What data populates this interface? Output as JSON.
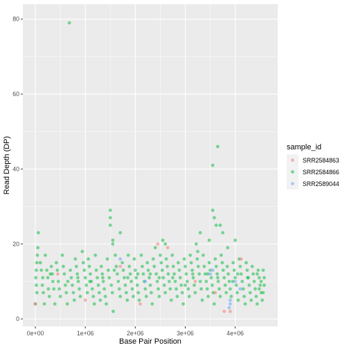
{
  "chart_data": {
    "type": "scatter",
    "xlabel": "Base Pair Position",
    "ylabel": "Read Depth (DP)",
    "xlim": [
      -250000,
      4850000
    ],
    "ylim": [
      -2,
      84
    ],
    "x_ticks": [
      0,
      1000000,
      2000000,
      3000000,
      4000000
    ],
    "x_tick_labels": [
      "0e+00",
      "1e+06",
      "2e+06",
      "3e+06",
      "4e+06"
    ],
    "y_ticks": [
      0,
      20,
      40,
      60,
      80
    ],
    "y_tick_labels": [
      "0",
      "20",
      "40",
      "60",
      "80"
    ],
    "legend": {
      "title": "sample_id",
      "position": "right",
      "entries": [
        "SRR2584863",
        "SRR2584866",
        "SRR2589044"
      ]
    },
    "colors": {
      "panel_bg": "#EBEBEB",
      "grid": "#ffffff",
      "text": "#4D4D4D",
      "title_text": "#000000",
      "SRR2584863": "#F8766D",
      "SRR2584866": "#00BA38",
      "SRR2589044": "#619CFF"
    },
    "point_alpha": 0.5,
    "series": [
      {
        "name": "SRR2584863",
        "points": [
          [
            0,
            4
          ],
          [
            450000,
            12
          ],
          [
            1700000,
            14
          ],
          [
            2650000,
            19
          ],
          [
            2100000,
            4
          ],
          [
            3600000,
            7
          ],
          [
            3780000,
            2
          ],
          [
            3900000,
            2
          ],
          [
            4120000,
            16
          ],
          [
            3200000,
            10
          ],
          [
            1000000,
            5
          ],
          [
            2450000,
            20
          ]
        ]
      },
      {
        "name": "SRR2589044",
        "points": [
          [
            1700000,
            16
          ],
          [
            2200000,
            10
          ],
          [
            3500000,
            12
          ],
          [
            3900000,
            4
          ],
          [
            3900000,
            5
          ],
          [
            3880000,
            3
          ],
          [
            4100000,
            8
          ],
          [
            4000000,
            10
          ],
          [
            3550000,
            13
          ]
        ]
      },
      {
        "name": "SRR2584866",
        "points": [
          [
            680000,
            79
          ],
          [
            3650000,
            46
          ],
          [
            3550000,
            41
          ],
          [
            1500000,
            29
          ],
          [
            1500000,
            27
          ],
          [
            3550000,
            29
          ],
          [
            3580000,
            27
          ],
          [
            3620000,
            25
          ],
          [
            1500000,
            25
          ],
          [
            1550000,
            21
          ],
          [
            1550000,
            20
          ],
          [
            1700000,
            23
          ],
          [
            3300000,
            23
          ],
          [
            3480000,
            21
          ],
          [
            3750000,
            23
          ],
          [
            3700000,
            25
          ],
          [
            3850000,
            19
          ],
          [
            2400000,
            19
          ],
          [
            2550000,
            21
          ],
          [
            2600000,
            20
          ],
          [
            3250000,
            18
          ],
          [
            3220000,
            20
          ],
          [
            4000000,
            21
          ],
          [
            60000,
            23
          ],
          [
            50000,
            19
          ],
          [
            40000,
            17
          ],
          [
            30000,
            15
          ],
          [
            20000,
            13
          ],
          [
            10000,
            11
          ],
          [
            20000,
            9
          ],
          [
            30000,
            7
          ],
          [
            0,
            4
          ],
          [
            100000,
            15
          ],
          [
            120000,
            13
          ],
          [
            150000,
            11
          ],
          [
            140000,
            9
          ],
          [
            160000,
            7
          ],
          [
            180000,
            4
          ],
          [
            200000,
            17
          ],
          [
            230000,
            13
          ],
          [
            250000,
            11
          ],
          [
            260000,
            8
          ],
          [
            280000,
            6
          ],
          [
            320000,
            14
          ],
          [
            340000,
            12
          ],
          [
            350000,
            10
          ],
          [
            370000,
            8
          ],
          [
            390000,
            4
          ],
          [
            420000,
            15
          ],
          [
            440000,
            13
          ],
          [
            460000,
            10
          ],
          [
            480000,
            8
          ],
          [
            500000,
            6
          ],
          [
            540000,
            17
          ],
          [
            560000,
            14
          ],
          [
            580000,
            12
          ],
          [
            600000,
            9
          ],
          [
            620000,
            7
          ],
          [
            640000,
            4
          ],
          [
            700000,
            13
          ],
          [
            720000,
            11
          ],
          [
            740000,
            9
          ],
          [
            760000,
            7
          ],
          [
            780000,
            5
          ],
          [
            800000,
            16
          ],
          [
            820000,
            14
          ],
          [
            840000,
            12
          ],
          [
            860000,
            10
          ],
          [
            880000,
            8
          ],
          [
            900000,
            6
          ],
          [
            940000,
            18
          ],
          [
            960000,
            15
          ],
          [
            980000,
            13
          ],
          [
            1000000,
            11
          ],
          [
            1020000,
            9
          ],
          [
            1040000,
            7
          ],
          [
            1060000,
            16
          ],
          [
            1080000,
            14
          ],
          [
            1100000,
            12
          ],
          [
            1120000,
            10
          ],
          [
            1140000,
            8
          ],
          [
            1160000,
            6
          ],
          [
            1180000,
            4
          ],
          [
            1200000,
            17
          ],
          [
            1220000,
            13
          ],
          [
            1240000,
            11
          ],
          [
            1260000,
            9
          ],
          [
            1280000,
            7
          ],
          [
            1300000,
            5
          ],
          [
            1320000,
            14
          ],
          [
            1340000,
            12
          ],
          [
            1360000,
            10
          ],
          [
            1380000,
            8
          ],
          [
            1400000,
            6
          ],
          [
            1420000,
            4
          ],
          [
            1440000,
            16
          ],
          [
            1460000,
            13
          ],
          [
            1480000,
            11
          ],
          [
            1520000,
            9
          ],
          [
            1540000,
            7
          ],
          [
            1560000,
            2
          ],
          [
            1600000,
            17
          ],
          [
            1620000,
            14
          ],
          [
            1640000,
            12
          ],
          [
            1660000,
            10
          ],
          [
            1680000,
            8
          ],
          [
            1700000,
            6
          ],
          [
            1740000,
            15
          ],
          [
            1760000,
            13
          ],
          [
            1780000,
            11
          ],
          [
            1800000,
            9
          ],
          [
            1820000,
            7
          ],
          [
            1840000,
            5
          ],
          [
            1860000,
            17
          ],
          [
            1880000,
            14
          ],
          [
            1900000,
            12
          ],
          [
            1920000,
            10
          ],
          [
            1940000,
            8
          ],
          [
            1960000,
            6
          ],
          [
            1980000,
            16
          ],
          [
            2000000,
            13
          ],
          [
            2020000,
            11
          ],
          [
            2040000,
            9
          ],
          [
            2060000,
            7
          ],
          [
            2080000,
            5
          ],
          [
            2120000,
            17
          ],
          [
            2140000,
            14
          ],
          [
            2160000,
            12
          ],
          [
            2180000,
            10
          ],
          [
            2200000,
            8
          ],
          [
            2220000,
            6
          ],
          [
            2240000,
            15
          ],
          [
            2260000,
            13
          ],
          [
            2280000,
            11
          ],
          [
            2300000,
            9
          ],
          [
            2320000,
            7
          ],
          [
            2340000,
            4
          ],
          [
            2360000,
            16
          ],
          [
            2380000,
            14
          ],
          [
            2420000,
            12
          ],
          [
            2440000,
            10
          ],
          [
            2460000,
            8
          ],
          [
            2480000,
            6
          ],
          [
            2500000,
            17
          ],
          [
            2520000,
            15
          ],
          [
            2540000,
            13
          ],
          [
            2560000,
            11
          ],
          [
            2580000,
            9
          ],
          [
            2600000,
            7
          ],
          [
            2620000,
            16
          ],
          [
            2640000,
            14
          ],
          [
            2660000,
            12
          ],
          [
            2680000,
            10
          ],
          [
            2700000,
            8
          ],
          [
            2720000,
            5
          ],
          [
            2740000,
            17
          ],
          [
            2760000,
            14
          ],
          [
            2780000,
            12
          ],
          [
            2800000,
            10
          ],
          [
            2820000,
            8
          ],
          [
            2840000,
            6
          ],
          [
            2860000,
            15
          ],
          [
            2880000,
            13
          ],
          [
            2900000,
            11
          ],
          [
            2920000,
            9
          ],
          [
            2940000,
            7
          ],
          [
            2960000,
            4
          ],
          [
            2980000,
            16
          ],
          [
            3000000,
            14
          ],
          [
            3020000,
            12
          ],
          [
            3040000,
            10
          ],
          [
            3060000,
            8
          ],
          [
            3080000,
            6
          ],
          [
            3100000,
            17
          ],
          [
            3120000,
            15
          ],
          [
            3140000,
            13
          ],
          [
            3160000,
            11
          ],
          [
            3180000,
            9
          ],
          [
            3200000,
            7
          ],
          [
            3240000,
            16
          ],
          [
            3260000,
            14
          ],
          [
            3280000,
            12
          ],
          [
            3300000,
            10
          ],
          [
            3320000,
            8
          ],
          [
            3340000,
            5
          ],
          [
            3360000,
            17
          ],
          [
            3380000,
            14
          ],
          [
            3400000,
            12
          ],
          [
            3420000,
            10
          ],
          [
            3440000,
            8
          ],
          [
            3460000,
            6
          ],
          [
            3480000,
            15
          ],
          [
            3500000,
            13
          ],
          [
            3520000,
            11
          ],
          [
            3540000,
            9
          ],
          [
            3560000,
            7
          ],
          [
            3580000,
            4
          ],
          [
            3600000,
            16
          ],
          [
            3620000,
            14
          ],
          [
            3640000,
            12
          ],
          [
            3660000,
            10
          ],
          [
            3680000,
            8
          ],
          [
            3700000,
            6
          ],
          [
            3720000,
            17
          ],
          [
            3740000,
            15
          ],
          [
            3760000,
            13
          ],
          [
            3780000,
            11
          ],
          [
            3800000,
            9
          ],
          [
            3820000,
            7
          ],
          [
            3840000,
            14
          ],
          [
            3860000,
            12
          ],
          [
            3880000,
            10
          ],
          [
            3900000,
            8
          ],
          [
            3920000,
            6
          ],
          [
            3960000,
            15
          ],
          [
            3980000,
            13
          ],
          [
            4000000,
            11
          ],
          [
            4020000,
            9
          ],
          [
            4040000,
            7
          ],
          [
            4060000,
            5
          ],
          [
            4080000,
            16
          ],
          [
            4100000,
            14
          ],
          [
            4120000,
            12
          ],
          [
            4140000,
            10
          ],
          [
            4160000,
            8
          ],
          [
            4180000,
            6
          ],
          [
            4200000,
            4
          ],
          [
            4220000,
            15
          ],
          [
            4240000,
            13
          ],
          [
            4260000,
            11
          ],
          [
            4280000,
            9
          ],
          [
            4300000,
            7
          ],
          [
            4320000,
            5
          ],
          [
            4340000,
            14
          ],
          [
            4360000,
            12
          ],
          [
            4380000,
            10
          ],
          [
            4400000,
            8
          ],
          [
            4420000,
            6
          ],
          [
            4440000,
            4
          ],
          [
            4460000,
            13
          ],
          [
            4480000,
            11
          ],
          [
            4500000,
            9
          ],
          [
            4520000,
            7
          ],
          [
            4540000,
            5
          ],
          [
            4560000,
            13
          ],
          [
            4580000,
            11
          ],
          [
            4580000,
            9
          ],
          [
            4560000,
            7
          ],
          [
            4520000,
            10
          ],
          [
            4480000,
            8
          ],
          [
            4440000,
            12
          ],
          [
            300000,
            12
          ],
          [
            650000,
            10
          ],
          [
            1090000,
            10
          ],
          [
            1580000,
            13
          ],
          [
            2050000,
            12
          ],
          [
            2480000,
            11
          ],
          [
            3000000,
            9
          ],
          [
            3450000,
            12
          ],
          [
            3950000,
            10
          ],
          [
            4250000,
            11
          ],
          [
            850000,
            11
          ],
          [
            1350000,
            11
          ],
          [
            1850000,
            11
          ],
          [
            2300000,
            12
          ],
          [
            2750000,
            11
          ],
          [
            3150000,
            12
          ],
          [
            3650000,
            11
          ],
          [
            4050000,
            12
          ]
        ]
      }
    ]
  }
}
